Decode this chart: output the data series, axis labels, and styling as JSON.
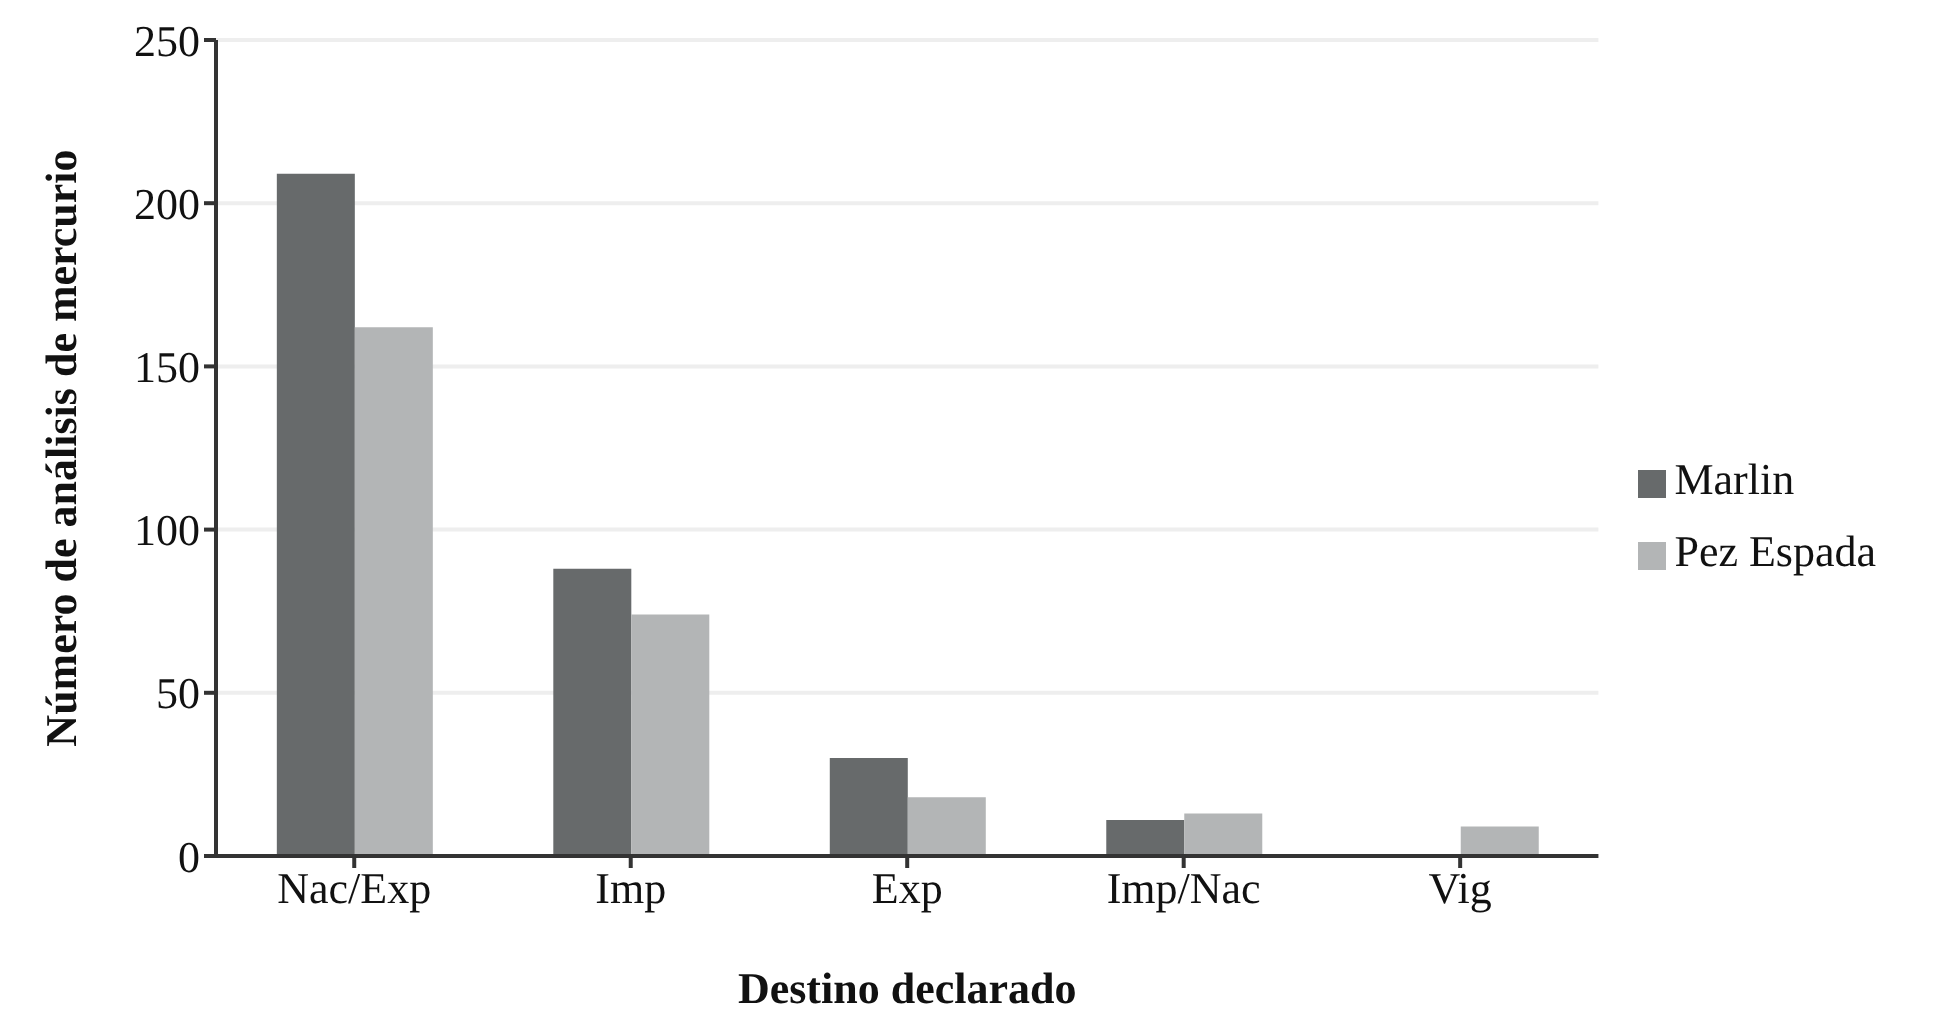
{
  "chart_data": {
    "type": "bar",
    "xlabel": "Destino declarado",
    "ylabel": "Número de análisis de mercurio",
    "categories": [
      "Nac/Exp",
      "Imp",
      "Exp",
      "Imp/Nac",
      "Vig"
    ],
    "series": [
      {
        "name": "Marlin",
        "color": "#676a6b",
        "values": [
          209,
          88,
          30,
          11,
          0
        ]
      },
      {
        "name": "Pez Espada",
        "color": "#b3b5b6",
        "values": [
          162,
          74,
          18,
          13,
          9
        ]
      }
    ],
    "ylim": [
      0,
      250
    ],
    "yticks": [
      0,
      50,
      100,
      150,
      200,
      250
    ],
    "grid": "y",
    "legend": "right"
  }
}
